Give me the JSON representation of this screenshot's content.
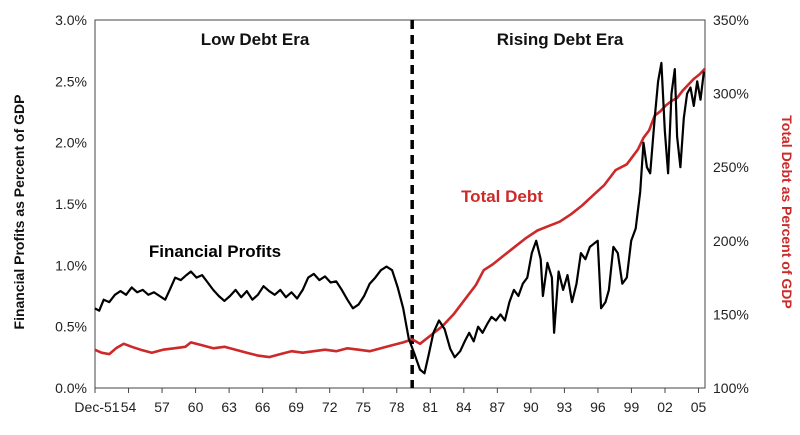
{
  "chart_data": {
    "type": "line",
    "x_tick_labels": [
      "Dec-51",
      "54",
      "57",
      "60",
      "63",
      "66",
      "69",
      "72",
      "75",
      "78",
      "81",
      "84",
      "87",
      "90",
      "93",
      "96",
      "99",
      "02",
      "05"
    ],
    "x_range": [
      1951.92,
      2006.5
    ],
    "ylabel_left": "Financial Profits as Percent of GDP",
    "ylabel_right": "Total Debt as Percent of GDP",
    "y_left_ticks": [
      "0.0%",
      "0.5%",
      "1.0%",
      "1.5%",
      "2.0%",
      "2.5%",
      "3.0%"
    ],
    "y_left_range": [
      0,
      3.0
    ],
    "y_right_ticks": [
      "100%",
      "150%",
      "200%",
      "250%",
      "300%",
      "350%"
    ],
    "y_right_range": [
      100,
      350
    ],
    "divider_year": 1980.3,
    "eras": {
      "left": "Low Debt Era",
      "right": "Rising Debt Era"
    },
    "annotations": {
      "profits": "Financial Profits",
      "debt": "Total Debt"
    },
    "colors": {
      "profits": "#000000",
      "debt": "#cc2a2a"
    },
    "series": [
      {
        "name": "Financial Profits",
        "axis": "left",
        "points": [
          [
            1951.9,
            0.65
          ],
          [
            1952.3,
            0.63
          ],
          [
            1952.7,
            0.72
          ],
          [
            1953.2,
            0.7
          ],
          [
            1953.7,
            0.76
          ],
          [
            1954.2,
            0.79
          ],
          [
            1954.7,
            0.76
          ],
          [
            1955.2,
            0.82
          ],
          [
            1955.7,
            0.78
          ],
          [
            1956.2,
            0.8
          ],
          [
            1956.7,
            0.76
          ],
          [
            1957.2,
            0.78
          ],
          [
            1957.7,
            0.75
          ],
          [
            1958.2,
            0.72
          ],
          [
            1958.6,
            0.8
          ],
          [
            1959.1,
            0.9
          ],
          [
            1959.6,
            0.88
          ],
          [
            1960.1,
            0.92
          ],
          [
            1960.5,
            0.95
          ],
          [
            1961.0,
            0.9
          ],
          [
            1961.5,
            0.92
          ],
          [
            1962.0,
            0.86
          ],
          [
            1962.5,
            0.8
          ],
          [
            1963.0,
            0.75
          ],
          [
            1963.5,
            0.71
          ],
          [
            1964.0,
            0.75
          ],
          [
            1964.5,
            0.8
          ],
          [
            1965.0,
            0.74
          ],
          [
            1965.5,
            0.79
          ],
          [
            1966.0,
            0.72
          ],
          [
            1966.5,
            0.76
          ],
          [
            1967.0,
            0.83
          ],
          [
            1967.5,
            0.79
          ],
          [
            1968.0,
            0.76
          ],
          [
            1968.5,
            0.8
          ],
          [
            1969.0,
            0.74
          ],
          [
            1969.5,
            0.78
          ],
          [
            1970.0,
            0.73
          ],
          [
            1970.5,
            0.8
          ],
          [
            1971.0,
            0.9
          ],
          [
            1971.5,
            0.93
          ],
          [
            1972.0,
            0.88
          ],
          [
            1972.5,
            0.91
          ],
          [
            1973.0,
            0.86
          ],
          [
            1973.5,
            0.87
          ],
          [
            1974.0,
            0.8
          ],
          [
            1974.5,
            0.72
          ],
          [
            1975.0,
            0.65
          ],
          [
            1975.5,
            0.68
          ],
          [
            1976.0,
            0.75
          ],
          [
            1976.5,
            0.85
          ],
          [
            1977.0,
            0.9
          ],
          [
            1977.5,
            0.96
          ],
          [
            1978.0,
            0.99
          ],
          [
            1978.5,
            0.96
          ],
          [
            1979.0,
            0.82
          ],
          [
            1979.5,
            0.65
          ],
          [
            1980.0,
            0.4
          ],
          [
            1980.5,
            0.28
          ],
          [
            1981.0,
            0.15
          ],
          [
            1981.4,
            0.12
          ],
          [
            1981.8,
            0.28
          ],
          [
            1982.2,
            0.45
          ],
          [
            1982.7,
            0.55
          ],
          [
            1983.2,
            0.48
          ],
          [
            1983.7,
            0.32
          ],
          [
            1984.1,
            0.25
          ],
          [
            1984.6,
            0.3
          ],
          [
            1985.0,
            0.38
          ],
          [
            1985.4,
            0.45
          ],
          [
            1985.8,
            0.38
          ],
          [
            1986.2,
            0.5
          ],
          [
            1986.6,
            0.45
          ],
          [
            1987.0,
            0.52
          ],
          [
            1987.4,
            0.58
          ],
          [
            1987.8,
            0.55
          ],
          [
            1988.2,
            0.6
          ],
          [
            1988.6,
            0.55
          ],
          [
            1989.0,
            0.7
          ],
          [
            1989.4,
            0.8
          ],
          [
            1989.8,
            0.75
          ],
          [
            1990.2,
            0.85
          ],
          [
            1990.6,
            0.9
          ],
          [
            1991.0,
            1.1
          ],
          [
            1991.4,
            1.2
          ],
          [
            1991.8,
            1.05
          ],
          [
            1992.0,
            0.75
          ],
          [
            1992.4,
            1.02
          ],
          [
            1992.8,
            0.9
          ],
          [
            1993.0,
            0.45
          ],
          [
            1993.4,
            0.95
          ],
          [
            1993.8,
            0.8
          ],
          [
            1994.2,
            0.92
          ],
          [
            1994.6,
            0.7
          ],
          [
            1995.0,
            0.85
          ],
          [
            1995.4,
            1.1
          ],
          [
            1995.8,
            1.05
          ],
          [
            1996.2,
            1.15
          ],
          [
            1996.6,
            1.18
          ],
          [
            1996.9,
            1.2
          ],
          [
            1997.2,
            0.65
          ],
          [
            1997.6,
            0.7
          ],
          [
            1997.9,
            0.8
          ],
          [
            1998.3,
            1.15
          ],
          [
            1998.7,
            1.1
          ],
          [
            1999.1,
            0.85
          ],
          [
            1999.5,
            0.9
          ],
          [
            1999.9,
            1.2
          ],
          [
            2000.3,
            1.3
          ],
          [
            2000.7,
            1.6
          ],
          [
            2001.0,
            2.0
          ],
          [
            2001.3,
            1.8
          ],
          [
            2001.6,
            1.75
          ],
          [
            2002.0,
            2.2
          ],
          [
            2002.3,
            2.5
          ],
          [
            2002.6,
            2.65
          ],
          [
            2002.9,
            2.1
          ],
          [
            2003.2,
            1.75
          ],
          [
            2003.5,
            2.4
          ],
          [
            2003.8,
            2.6
          ],
          [
            2004.0,
            2.05
          ],
          [
            2004.3,
            1.8
          ],
          [
            2004.6,
            2.2
          ],
          [
            2004.9,
            2.4
          ],
          [
            2005.2,
            2.45
          ],
          [
            2005.5,
            2.3
          ],
          [
            2005.8,
            2.5
          ],
          [
            2006.1,
            2.35
          ],
          [
            2006.4,
            2.58
          ]
        ]
      },
      {
        "name": "Total Debt",
        "axis": "right",
        "points": [
          [
            1951.9,
            126
          ],
          [
            1952.5,
            124
          ],
          [
            1953.2,
            123
          ],
          [
            1953.8,
            127
          ],
          [
            1954.5,
            130
          ],
          [
            1955.2,
            128
          ],
          [
            1956.0,
            126
          ],
          [
            1957.0,
            124
          ],
          [
            1958.0,
            126
          ],
          [
            1959.0,
            127
          ],
          [
            1960.0,
            128
          ],
          [
            1960.5,
            131
          ],
          [
            1961.5,
            129
          ],
          [
            1962.5,
            127
          ],
          [
            1963.5,
            128
          ],
          [
            1964.5,
            126
          ],
          [
            1965.5,
            124
          ],
          [
            1966.5,
            122
          ],
          [
            1967.5,
            121
          ],
          [
            1968.5,
            123
          ],
          [
            1969.5,
            125
          ],
          [
            1970.5,
            124
          ],
          [
            1971.5,
            125
          ],
          [
            1972.5,
            126
          ],
          [
            1973.5,
            125
          ],
          [
            1974.5,
            127
          ],
          [
            1975.5,
            126
          ],
          [
            1976.5,
            125
          ],
          [
            1977.5,
            127
          ],
          [
            1978.5,
            129
          ],
          [
            1979.5,
            131
          ],
          [
            1980.3,
            133
          ],
          [
            1981.0,
            130
          ],
          [
            1982.0,
            136
          ],
          [
            1983.0,
            142
          ],
          [
            1984.0,
            150
          ],
          [
            1985.0,
            160
          ],
          [
            1986.0,
            170
          ],
          [
            1986.7,
            180
          ],
          [
            1987.5,
            184
          ],
          [
            1988.5,
            190
          ],
          [
            1989.5,
            196
          ],
          [
            1990.5,
            202
          ],
          [
            1991.5,
            207
          ],
          [
            1992.5,
            210
          ],
          [
            1993.5,
            213
          ],
          [
            1994.5,
            218
          ],
          [
            1995.5,
            224
          ],
          [
            1996.5,
            231
          ],
          [
            1997.5,
            238
          ],
          [
            1998.5,
            248
          ],
          [
            1999.5,
            252
          ],
          [
            2000.5,
            262
          ],
          [
            2001.0,
            270
          ],
          [
            2001.5,
            275
          ],
          [
            2002.0,
            285
          ],
          [
            2002.5,
            288
          ],
          [
            2003.0,
            292
          ],
          [
            2003.5,
            295
          ],
          [
            2004.0,
            297
          ],
          [
            2004.5,
            302
          ],
          [
            2005.0,
            306
          ],
          [
            2005.5,
            310
          ],
          [
            2006.0,
            313
          ],
          [
            2006.5,
            317
          ]
        ]
      }
    ]
  }
}
